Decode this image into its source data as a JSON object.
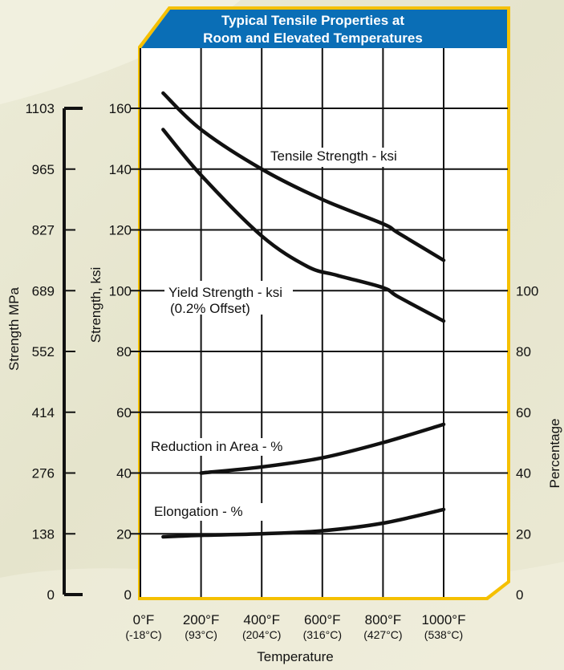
{
  "colors": {
    "panel": "#ffffff",
    "frame": "#f5c000",
    "header": "#0a6eb6",
    "line": "#111111"
  },
  "chart_data": {
    "type": "line",
    "title_line1": "Typical Tensile Properties at",
    "title_line2": "Room and Elevated Temperatures",
    "xlabel": "Temperature",
    "ylabel_ksi": "Strength, ksi",
    "ylabel_mpa": "Strength MPa",
    "ylabel_pct": "Percentage",
    "xlim": [
      0,
      1000
    ],
    "ylim_ksi": [
      0,
      160
    ],
    "x_ticks": [
      {
        "value": 0,
        "f": "0°F",
        "c": "(-18°C)"
      },
      {
        "value": 200,
        "f": "200°F",
        "c": "(93°C)"
      },
      {
        "value": 400,
        "f": "400°F",
        "c": "(204°C)"
      },
      {
        "value": 600,
        "f": "600°F",
        "c": "(316°C)"
      },
      {
        "value": 800,
        "f": "800°F",
        "c": "(427°C)"
      },
      {
        "value": 1000,
        "f": "1000°F",
        "c": "(538°C)"
      }
    ],
    "ksi_ticks": [
      {
        "value": 0,
        "label": "0"
      },
      {
        "value": 20,
        "label": "20"
      },
      {
        "value": 40,
        "label": "40"
      },
      {
        "value": 60,
        "label": "60"
      },
      {
        "value": 80,
        "label": "80"
      },
      {
        "value": 100,
        "label": "100"
      },
      {
        "value": 120,
        "label": "120"
      },
      {
        "value": 140,
        "label": "140"
      },
      {
        "value": 160,
        "label": "160"
      }
    ],
    "mpa_ticks": [
      {
        "value": 0,
        "label": "0"
      },
      {
        "value": 20,
        "label": "138"
      },
      {
        "value": 40,
        "label": "276"
      },
      {
        "value": 60,
        "label": "414"
      },
      {
        "value": 80,
        "label": "552"
      },
      {
        "value": 100,
        "label": "689"
      },
      {
        "value": 120,
        "label": "827"
      },
      {
        "value": 140,
        "label": "965"
      },
      {
        "value": 160,
        "label": "1103"
      }
    ],
    "pct_ticks": [
      {
        "value": 0,
        "label": "0"
      },
      {
        "value": 20,
        "label": "20"
      },
      {
        "value": 40,
        "label": "40"
      },
      {
        "value": 60,
        "label": "60"
      },
      {
        "value": 80,
        "label": "80"
      },
      {
        "value": 100,
        "label": "100"
      }
    ],
    "series": [
      {
        "name": "Tensile Strength - ksi",
        "x": [
          75,
          200,
          400,
          600,
          800,
          850,
          1000
        ],
        "y": [
          165,
          153,
          140,
          130,
          122,
          119,
          110
        ]
      },
      {
        "name": "Yield Strength - ksi",
        "name2": "(0.2% Offset)",
        "x": [
          75,
          200,
          400,
          550,
          650,
          800,
          850,
          1000
        ],
        "y": [
          153,
          138,
          118,
          108,
          105,
          101,
          98,
          90
        ]
      },
      {
        "name": "Reduction in Area - %",
        "x": [
          200,
          400,
          600,
          800,
          1000
        ],
        "y": [
          40,
          42,
          45,
          50,
          56
        ]
      },
      {
        "name": "Elongation - %",
        "x": [
          75,
          200,
          400,
          600,
          800,
          1000
        ],
        "y": [
          19,
          19.5,
          20,
          21,
          23.5,
          28
        ]
      }
    ]
  }
}
